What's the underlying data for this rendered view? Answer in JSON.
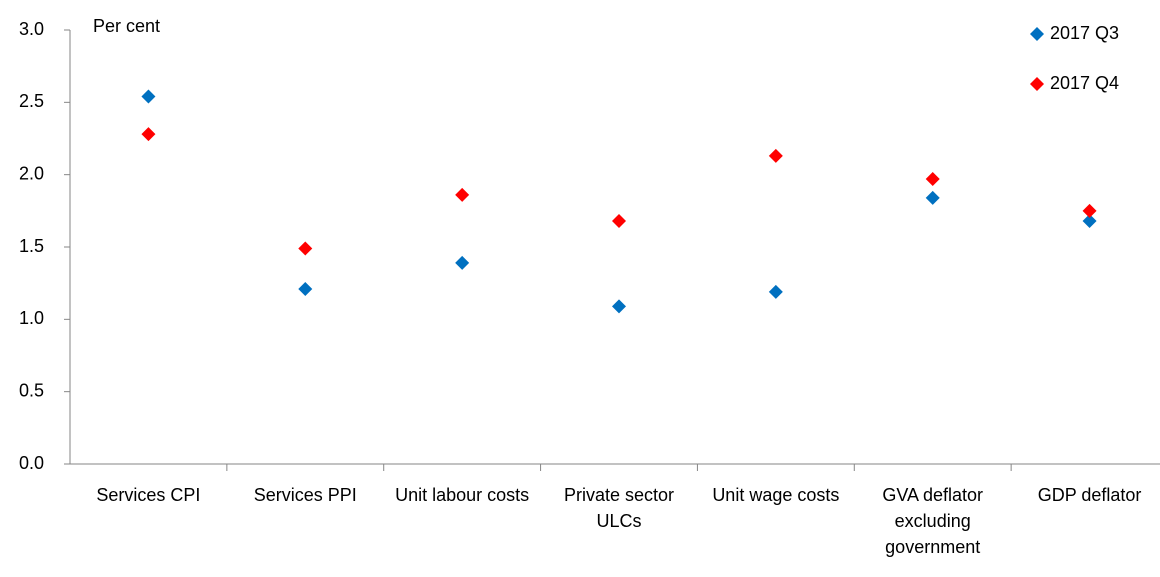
{
  "chart_data": {
    "type": "scatter",
    "y_label": "Per cent",
    "categories": [
      "Services CPI",
      "Services PPI",
      "Unit labour costs",
      "Private sector ULCs",
      "Unit wage costs",
      "GVA deflator excluding government",
      "GDP deflator"
    ],
    "series": [
      {
        "name": "2017 Q3",
        "color": "#0070c0",
        "values": [
          2.54,
          1.21,
          1.39,
          1.09,
          1.19,
          1.84,
          1.68
        ]
      },
      {
        "name": "2017 Q4",
        "color": "#ff0000",
        "values": [
          2.28,
          1.49,
          1.86,
          1.68,
          2.13,
          1.97,
          1.75
        ]
      }
    ],
    "ylim": [
      0,
      3
    ],
    "yticks": [
      {
        "value": 0,
        "label": "0.0"
      },
      {
        "value": 0.5,
        "label": "0.5"
      },
      {
        "value": 1,
        "label": "1.0"
      },
      {
        "value": 1.5,
        "label": "1.5"
      },
      {
        "value": 2,
        "label": "2.0"
      },
      {
        "value": 2.5,
        "label": "2.5"
      },
      {
        "value": 3,
        "label": "3.0"
      }
    ],
    "grid": false,
    "legend": "top-right"
  }
}
